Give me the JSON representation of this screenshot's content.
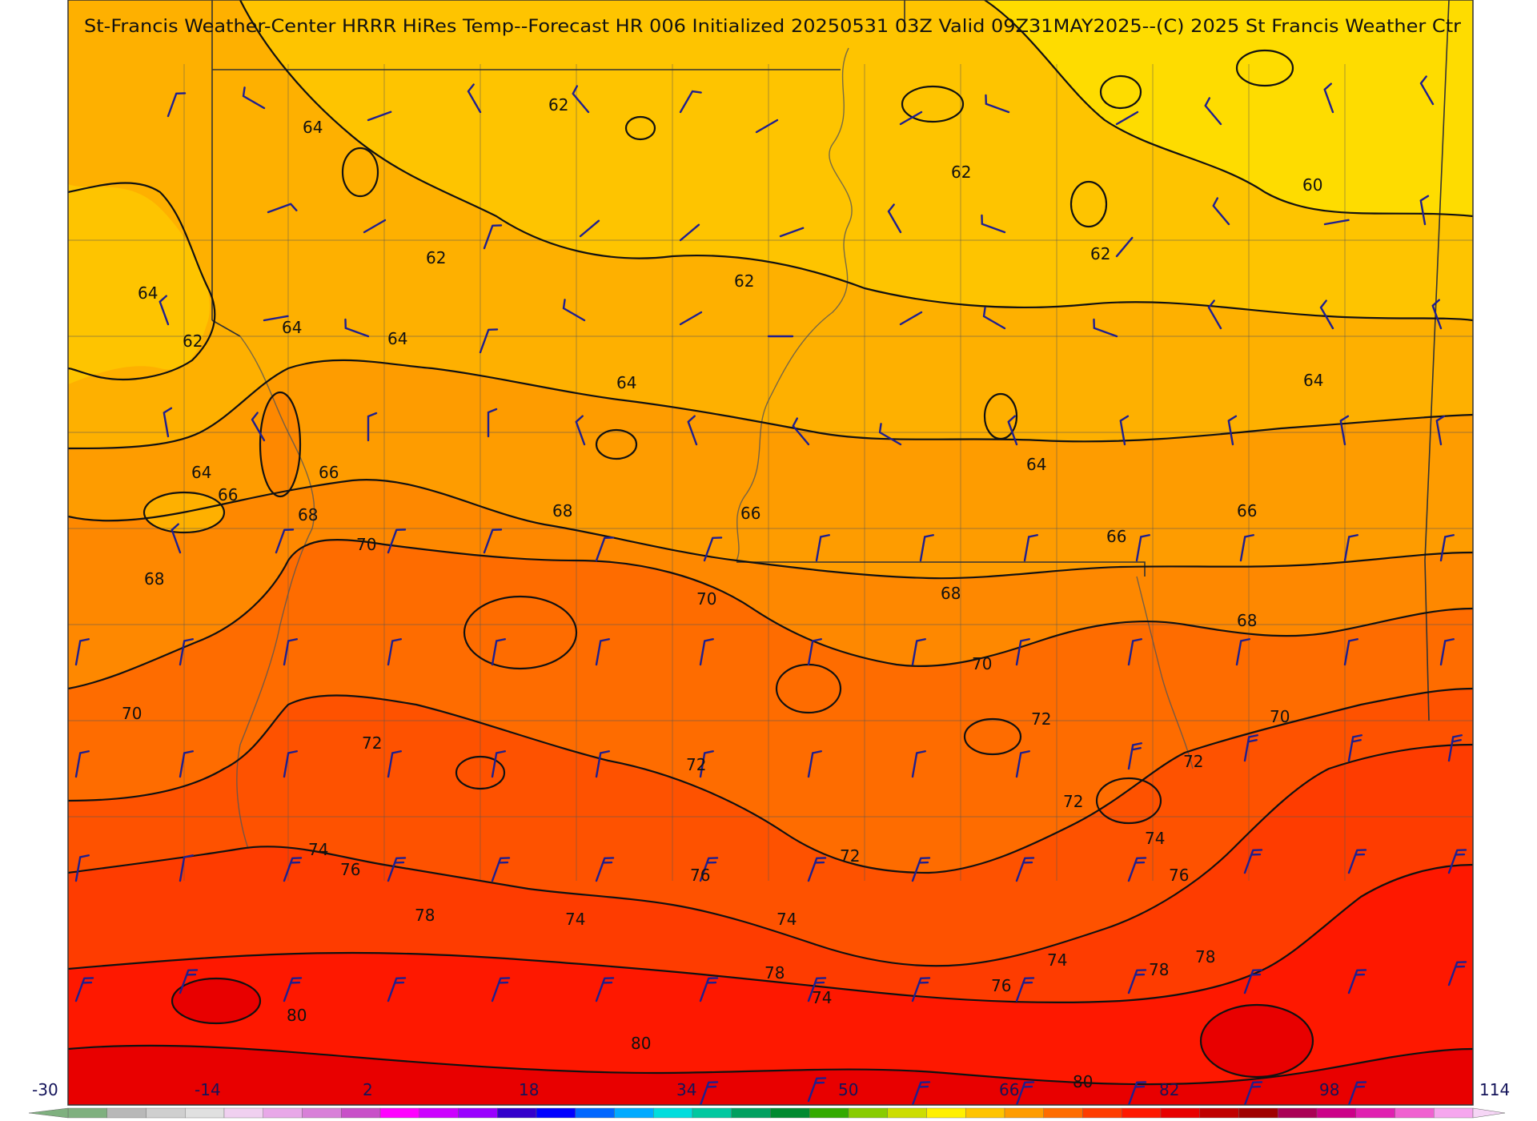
{
  "title": "St-Francis Weather-Center HRRR HiRes Temp--Forecast HR 006 Initialized 20250531 03Z Valid 09Z31MAY2025--(C) 2025 St Francis Weather Ctr",
  "contour_labels": [
    {
      "id": "c62a",
      "value": "62"
    },
    {
      "id": "c62b",
      "value": "62"
    },
    {
      "id": "c62c",
      "value": "62"
    },
    {
      "id": "c62d",
      "value": "62"
    },
    {
      "id": "c62e",
      "value": "62"
    },
    {
      "id": "c62f",
      "value": "62"
    },
    {
      "id": "c60a",
      "value": "60"
    },
    {
      "id": "c64a",
      "value": "64"
    },
    {
      "id": "c64b",
      "value": "64"
    },
    {
      "id": "c64c",
      "value": "64"
    },
    {
      "id": "c64d",
      "value": "64"
    },
    {
      "id": "c64e",
      "value": "64"
    },
    {
      "id": "c64f",
      "value": "64"
    },
    {
      "id": "c64g",
      "value": "64"
    },
    {
      "id": "c64h",
      "value": "64"
    },
    {
      "id": "c66a",
      "value": "66"
    },
    {
      "id": "c66b",
      "value": "66"
    },
    {
      "id": "c66c",
      "value": "66"
    },
    {
      "id": "c66d",
      "value": "66"
    },
    {
      "id": "c66e",
      "value": "66"
    },
    {
      "id": "c68a",
      "value": "68"
    },
    {
      "id": "c68b",
      "value": "68"
    },
    {
      "id": "c68c",
      "value": "68"
    },
    {
      "id": "c68d",
      "value": "68"
    },
    {
      "id": "c68e",
      "value": "68"
    },
    {
      "id": "c70a",
      "value": "70"
    },
    {
      "id": "c70b",
      "value": "70"
    },
    {
      "id": "c70c",
      "value": "70"
    },
    {
      "id": "c70d",
      "value": "70"
    },
    {
      "id": "c70e",
      "value": "70"
    },
    {
      "id": "c72a",
      "value": "72"
    },
    {
      "id": "c72b",
      "value": "72"
    },
    {
      "id": "c72c",
      "value": "72"
    },
    {
      "id": "c72d",
      "value": "72"
    },
    {
      "id": "c72e",
      "value": "72"
    },
    {
      "id": "c72f",
      "value": "72"
    },
    {
      "id": "c74a",
      "value": "74"
    },
    {
      "id": "c74b",
      "value": "74"
    },
    {
      "id": "c74c",
      "value": "74"
    },
    {
      "id": "c74d",
      "value": "74"
    },
    {
      "id": "c74e",
      "value": "74"
    },
    {
      "id": "c74f",
      "value": "74"
    },
    {
      "id": "c76a",
      "value": "76"
    },
    {
      "id": "c76b",
      "value": "76"
    },
    {
      "id": "c76c",
      "value": "76"
    },
    {
      "id": "c76d",
      "value": "76"
    },
    {
      "id": "c78a",
      "value": "78"
    },
    {
      "id": "c78b",
      "value": "78"
    },
    {
      "id": "c78c",
      "value": "78"
    },
    {
      "id": "c78d",
      "value": "78"
    },
    {
      "id": "c80a",
      "value": "80"
    },
    {
      "id": "c80b",
      "value": "80"
    },
    {
      "id": "c80c",
      "value": "80"
    }
  ],
  "colorbar": {
    "min": -30,
    "max": 114,
    "labels": [
      "-30",
      "-14",
      "2",
      "18",
      "34",
      "50",
      "66",
      "82",
      "98",
      "114"
    ]
  },
  "colors": {
    "t58": "#fedc00",
    "t62": "#fec400",
    "t64": "#feb000",
    "t66": "#fe9c00",
    "t68": "#fe8800",
    "t70": "#fe6c00",
    "t72": "#fe5200",
    "t74": "#fe3c00",
    "t78": "#fe1800",
    "t80": "#e80000",
    "barb": "#1f1f8f"
  }
}
